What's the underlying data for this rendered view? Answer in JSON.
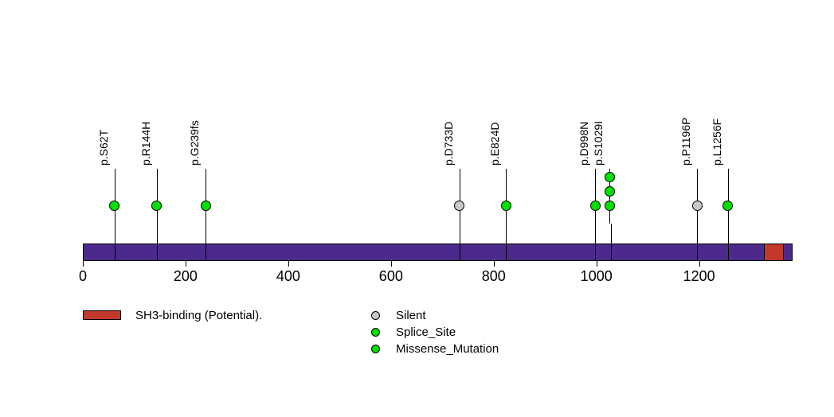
{
  "chart_data": {
    "type": "lollipop",
    "title": "",
    "xlabel": "",
    "ylabel": "",
    "axis": {
      "ticks": [
        0,
        200,
        400,
        600,
        800,
        1000,
        1200
      ],
      "range": [
        0,
        1382
      ],
      "grid": "off"
    },
    "protein": {
      "length": 1382,
      "backbone_color": "#4C2A8C",
      "outline_color": "#000000",
      "domains": [
        {
          "label": "SH3-binding (Potential).",
          "start": 1326,
          "end": 1365,
          "color": "#C2382B"
        }
      ]
    },
    "mutations": [
      {
        "label": "p.S62T",
        "position": 62,
        "count": 1,
        "color": "#00E000",
        "type": "Splice_Site/Missense_Mutation"
      },
      {
        "label": "p.R144H",
        "position": 144,
        "count": 1,
        "color": "#00E000",
        "type": "Splice_Site/Missense_Mutation"
      },
      {
        "label": "p.G239fs",
        "position": 239,
        "count": 1,
        "color": "#00E000",
        "type": "Splice_Site/Missense_Mutation"
      },
      {
        "label": "p.D733D",
        "position": 733,
        "count": 1,
        "color": "#C8C8C8",
        "type": "Silent"
      },
      {
        "label": "p.E824D",
        "position": 824,
        "count": 1,
        "color": "#00E000",
        "type": "Splice_Site/Missense_Mutation"
      },
      {
        "label": "p.D998N",
        "position": 998,
        "count": 1,
        "color": "#00E000",
        "type": "Splice_Site/Missense_Mutation"
      },
      {
        "label": "p.S1029I",
        "position": 1029,
        "count": 3,
        "color": "#00E000",
        "type": "Splice_Site/Missense_Mutation"
      },
      {
        "label": "p.P1196P",
        "position": 1196,
        "count": 1,
        "color": "#C8C8C8",
        "type": "Silent"
      },
      {
        "label": "p.L1256F",
        "position": 1256,
        "count": 1,
        "color": "#00E000",
        "type": "Splice_Site/Missense_Mutation"
      }
    ],
    "legend": {
      "domains": [
        {
          "label": "SH3-binding (Potential).",
          "color": "#C2382B"
        }
      ],
      "mutation_types": [
        {
          "label": "Silent",
          "color": "#C8C8C8"
        },
        {
          "label": "Splice_Site",
          "color": "#00E000"
        },
        {
          "label": "Missense_Mutation",
          "color": "#00E000"
        }
      ]
    }
  }
}
